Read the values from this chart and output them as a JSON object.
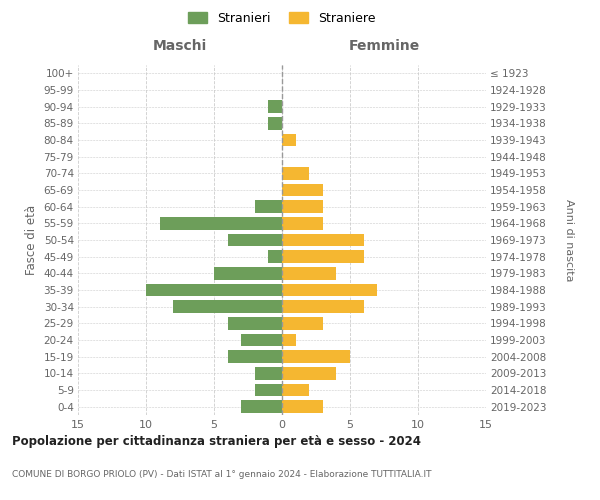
{
  "age_groups": [
    "0-4",
    "5-9",
    "10-14",
    "15-19",
    "20-24",
    "25-29",
    "30-34",
    "35-39",
    "40-44",
    "45-49",
    "50-54",
    "55-59",
    "60-64",
    "65-69",
    "70-74",
    "75-79",
    "80-84",
    "85-89",
    "90-94",
    "95-99",
    "100+"
  ],
  "birth_years": [
    "2019-2023",
    "2014-2018",
    "2009-2013",
    "2004-2008",
    "1999-2003",
    "1994-1998",
    "1989-1993",
    "1984-1988",
    "1979-1983",
    "1974-1978",
    "1969-1973",
    "1964-1968",
    "1959-1963",
    "1954-1958",
    "1949-1953",
    "1944-1948",
    "1939-1943",
    "1934-1938",
    "1929-1933",
    "1924-1928",
    "≤ 1923"
  ],
  "males": [
    3,
    2,
    2,
    4,
    3,
    4,
    8,
    10,
    5,
    1,
    4,
    9,
    2,
    0,
    0,
    0,
    0,
    1,
    1,
    0,
    0
  ],
  "females": [
    3,
    2,
    4,
    5,
    1,
    3,
    6,
    7,
    4,
    6,
    6,
    3,
    3,
    3,
    2,
    0,
    1,
    0,
    0,
    0,
    0
  ],
  "male_color": "#6d9e5a",
  "female_color": "#f5b731",
  "title": "Popolazione per cittadinanza straniera per età e sesso - 2024",
  "subtitle": "COMUNE DI BORGO PRIOLO (PV) - Dati ISTAT al 1° gennaio 2024 - Elaborazione TUTTITALIA.IT",
  "ylabel_left": "Fasce di età",
  "ylabel_right": "Anni di nascita",
  "xlabel_left": "Maschi",
  "xlabel_right": "Femmine",
  "legend_male": "Stranieri",
  "legend_female": "Straniere",
  "xlim": 15,
  "background_color": "#ffffff",
  "grid_color": "#cccccc",
  "tick_color": "#888888",
  "label_color": "#666666"
}
